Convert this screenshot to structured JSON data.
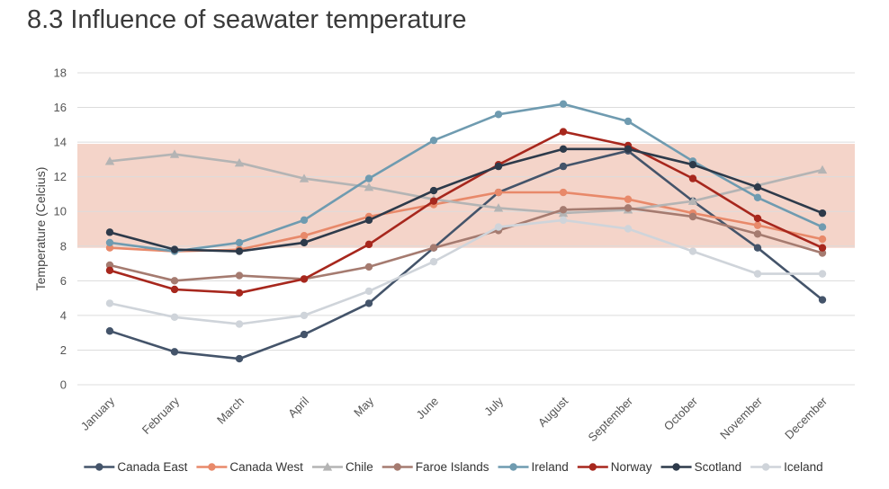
{
  "slide": {
    "title": "8.3  Influence of seawater temperature"
  },
  "chart_data": {
    "type": "line",
    "title": "",
    "xlabel": "",
    "ylabel": "Temperature (Celcius)",
    "ylim": [
      0,
      18
    ],
    "yticks": [
      0,
      2,
      4,
      6,
      8,
      10,
      12,
      14,
      16,
      18
    ],
    "grid": true,
    "legend_position": "bottom",
    "highlight_band": {
      "y_from": 7.9,
      "y_to": 13.9,
      "color": "#f2cdc0"
    },
    "categories": [
      "January",
      "February",
      "March",
      "April",
      "May",
      "June",
      "July",
      "August",
      "September",
      "October",
      "November",
      "December"
    ],
    "series": [
      {
        "name": "Canada East",
        "color": "#44546a",
        "marker": "circle",
        "values": [
          3.1,
          1.9,
          1.5,
          2.9,
          4.7,
          7.9,
          11.1,
          12.6,
          13.5,
          10.6,
          7.9,
          4.9
        ]
      },
      {
        "name": "Canada West",
        "color": "#e8896a",
        "marker": "circle",
        "values": [
          7.9,
          7.7,
          7.8,
          8.6,
          9.7,
          10.4,
          11.1,
          11.1,
          10.7,
          9.9,
          9.2,
          8.4
        ]
      },
      {
        "name": "Chile",
        "color": "#b4b4b4",
        "marker": "triangle",
        "values": [
          12.9,
          13.3,
          12.8,
          11.9,
          11.4,
          10.7,
          10.2,
          9.9,
          10.1,
          10.6,
          11.5,
          12.4
        ]
      },
      {
        "name": "Faroe Islands",
        "color": "#a57b70",
        "marker": "circle",
        "values": [
          6.9,
          6.0,
          6.3,
          6.1,
          6.8,
          7.9,
          8.9,
          10.1,
          10.2,
          9.7,
          8.7,
          7.6
        ]
      },
      {
        "name": "Ireland",
        "color": "#6f9bb0",
        "marker": "circle",
        "values": [
          8.2,
          7.7,
          8.2,
          9.5,
          11.9,
          14.1,
          15.6,
          16.2,
          15.2,
          12.9,
          10.8,
          9.1
        ]
      },
      {
        "name": "Norway",
        "color": "#a7271d",
        "marker": "circle",
        "values": [
          6.6,
          5.5,
          5.3,
          6.1,
          8.1,
          10.6,
          12.7,
          14.6,
          13.8,
          11.9,
          9.6,
          7.9
        ]
      },
      {
        "name": "Scotland",
        "color": "#2d3a4a",
        "marker": "circle",
        "values": [
          8.8,
          7.8,
          7.7,
          8.2,
          9.5,
          11.2,
          12.6,
          13.6,
          13.6,
          12.7,
          11.4,
          9.9
        ]
      },
      {
        "name": "Iceland",
        "color": "#cfd4da",
        "marker": "circle",
        "values": [
          4.7,
          3.9,
          3.5,
          4.0,
          5.4,
          7.1,
          9.1,
          9.5,
          9.0,
          7.7,
          6.4,
          6.4
        ]
      }
    ]
  }
}
